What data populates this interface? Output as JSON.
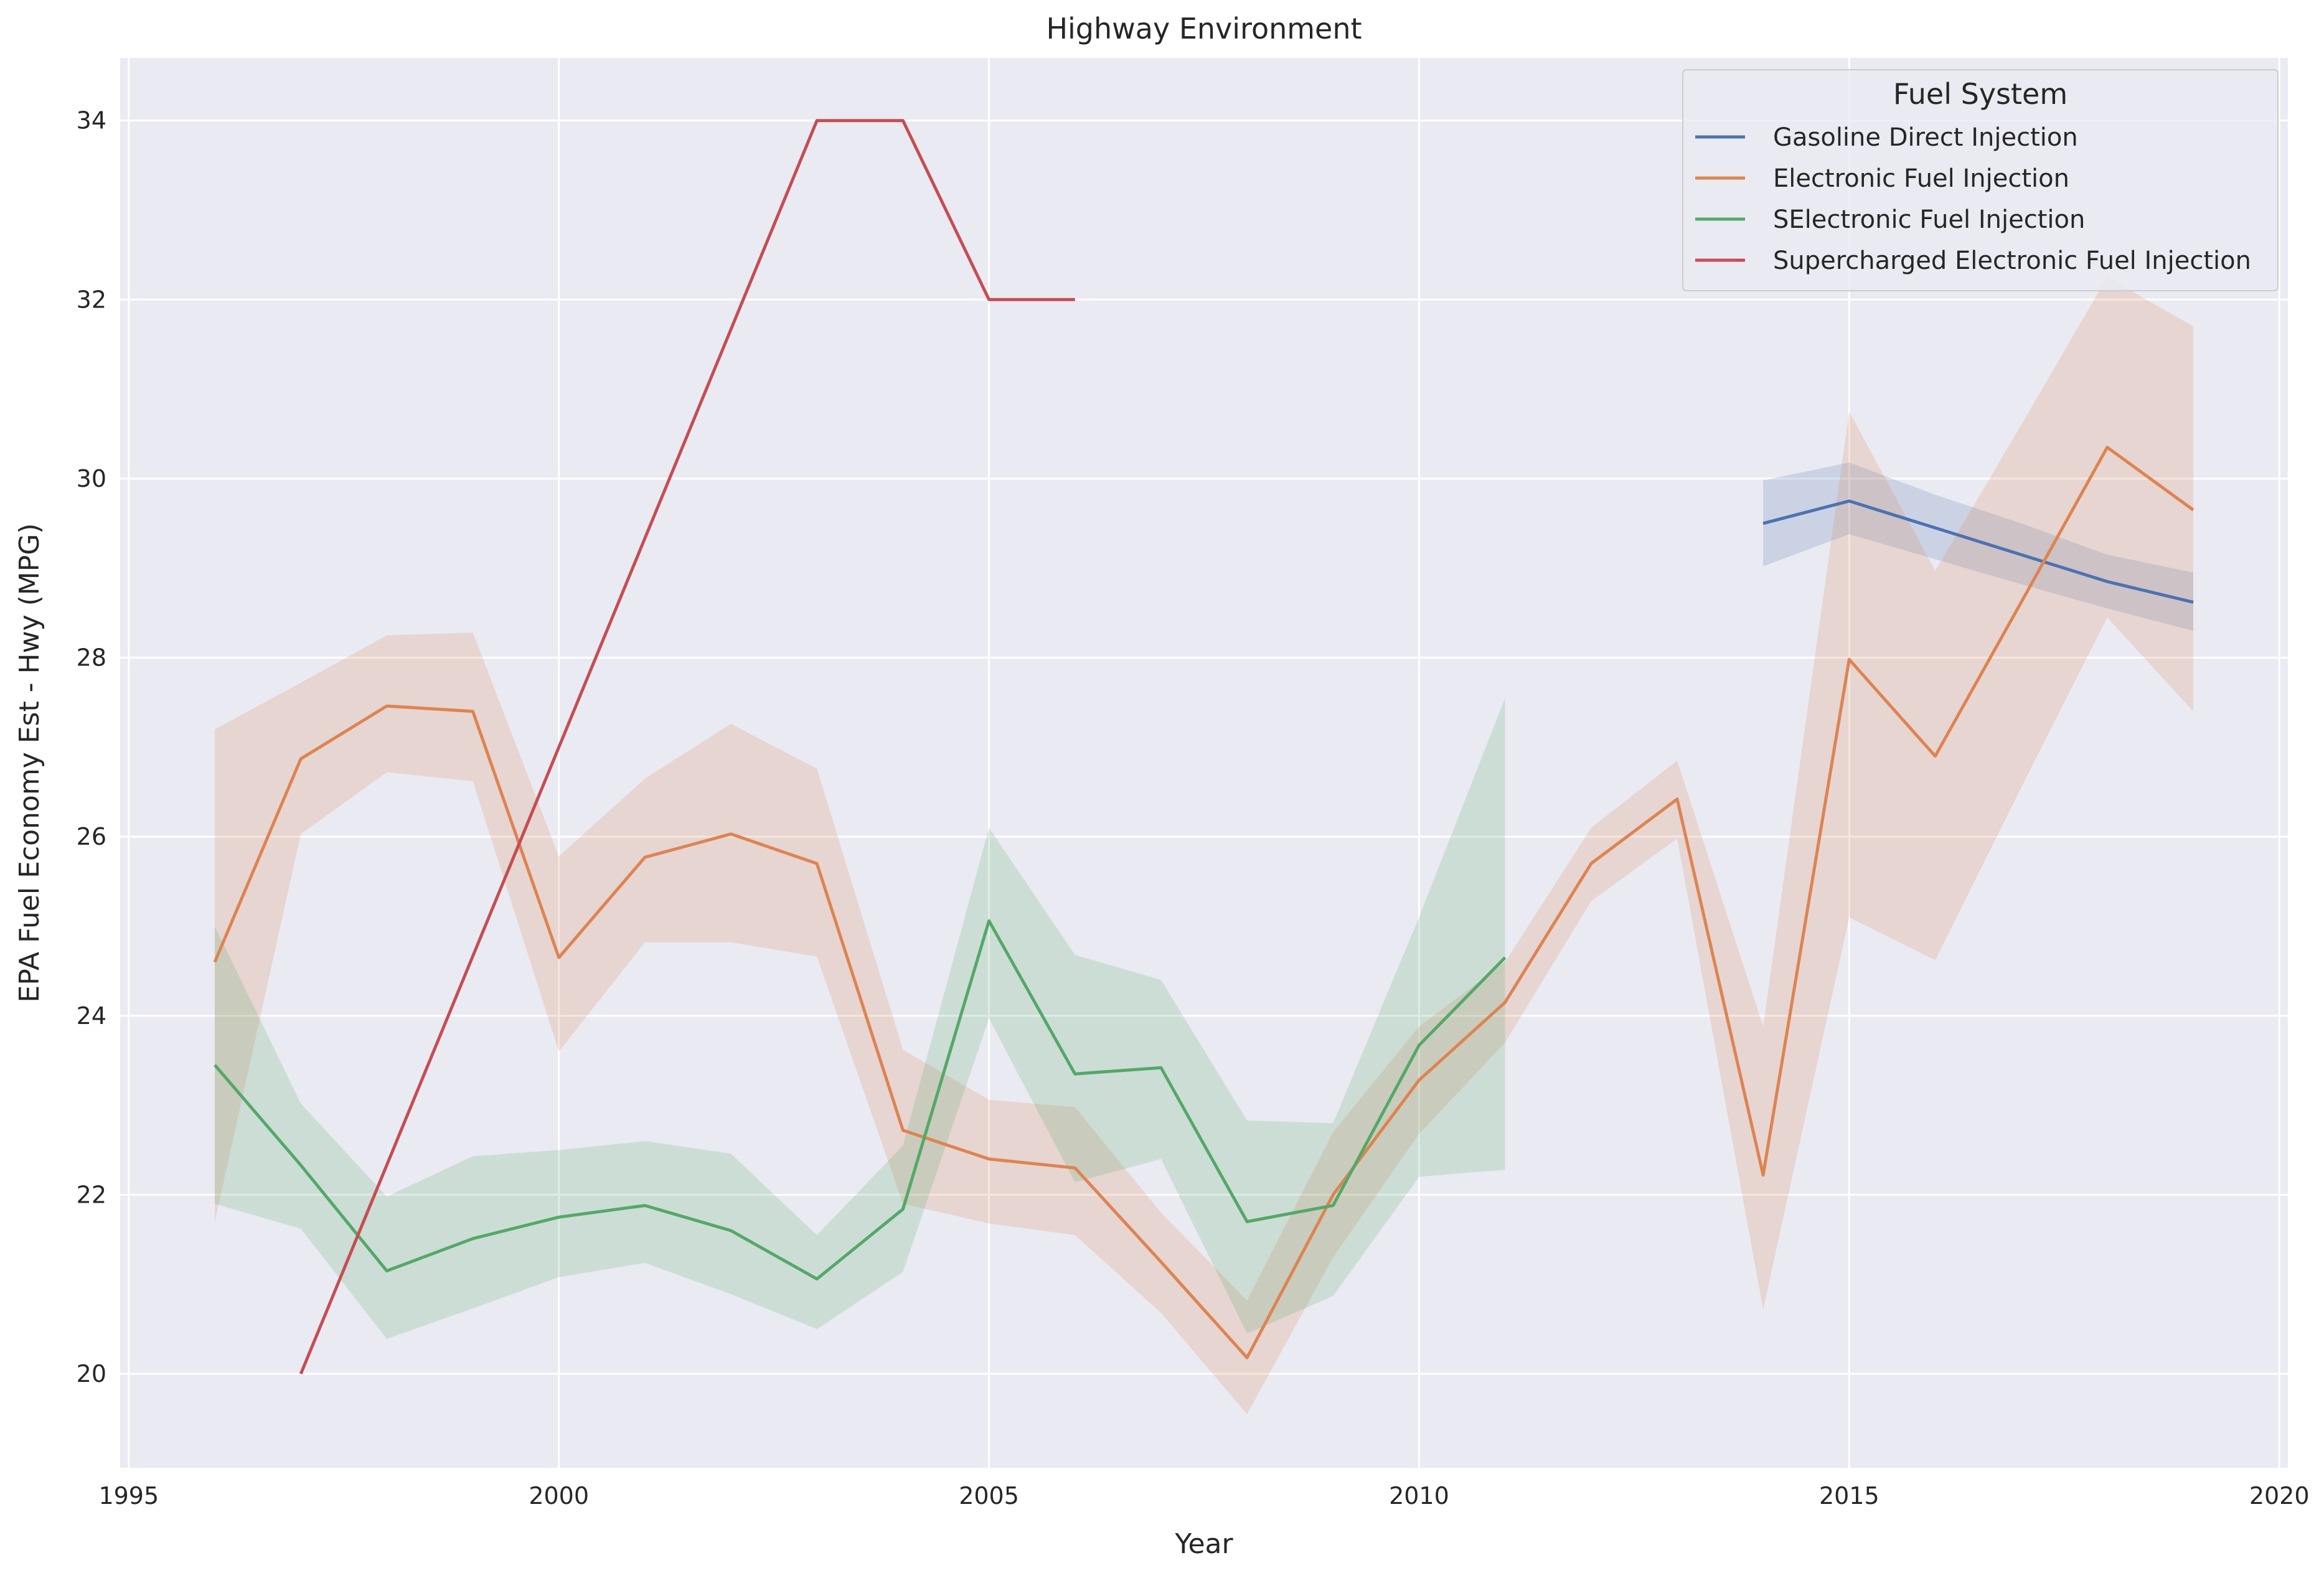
{
  "chart_data": {
    "type": "line",
    "title": "Highway Environment",
    "xlabel": "Year",
    "ylabel": "EPA Fuel Economy Est - Hwy (MPG)",
    "xlim": [
      1994.9,
      2020.1
    ],
    "ylim": [
      18.95,
      34.7
    ],
    "x_ticks": [
      1995,
      2000,
      2005,
      2010,
      2015,
      2020
    ],
    "y_ticks": [
      20,
      22,
      24,
      26,
      28,
      30,
      32,
      34
    ],
    "grid": true,
    "background": "#eaeaf2",
    "legend": {
      "title": "Fuel System",
      "placement": "top-right"
    },
    "series": [
      {
        "name": "Gasoline Direct Injection",
        "color": "#4c72b0",
        "x": [
          2014,
          2015,
          2016,
          2017,
          2018,
          2019
        ],
        "y": [
          29.5,
          29.75,
          29.45,
          29.15,
          28.85,
          28.62
        ],
        "ci_low": [
          29.02,
          29.38,
          29.1,
          28.82,
          28.55,
          28.3
        ],
        "ci_high": [
          29.98,
          30.18,
          29.82,
          29.5,
          29.15,
          28.95
        ]
      },
      {
        "name": "Electronic Fuel Injection",
        "color": "#dd8452",
        "x": [
          1996,
          1997,
          1998,
          1999,
          2000,
          2001,
          2002,
          2003,
          2004,
          2005,
          2006,
          2007,
          2008,
          2009,
          2010,
          2011,
          2012,
          2013,
          2014,
          2015,
          2016,
          2017,
          2018,
          2019
        ],
        "y": [
          24.6,
          26.87,
          27.46,
          27.4,
          24.65,
          25.77,
          26.03,
          25.7,
          22.72,
          22.4,
          22.3,
          21.25,
          20.18,
          22.0,
          23.28,
          24.15,
          25.7,
          26.42,
          22.22,
          27.98,
          26.9,
          28.62,
          30.35,
          29.65
        ],
        "ci_low": [
          21.7,
          26.03,
          26.72,
          26.62,
          23.6,
          24.82,
          24.82,
          24.66,
          21.9,
          21.68,
          21.55,
          20.68,
          19.55,
          21.3,
          22.68,
          23.7,
          25.28,
          25.98,
          20.72,
          25.1,
          24.62,
          26.55,
          28.45,
          27.4
        ],
        "ci_high": [
          27.2,
          27.72,
          28.25,
          28.28,
          25.78,
          26.65,
          27.26,
          26.76,
          23.62,
          23.06,
          22.98,
          21.8,
          20.82,
          22.7,
          23.88,
          24.6,
          26.1,
          26.85,
          23.88,
          30.75,
          28.97,
          30.6,
          32.25,
          31.7
        ]
      },
      {
        "name": "SElectronic Fuel Injection",
        "color": "#55a868",
        "x": [
          1996,
          1997,
          1998,
          1999,
          2000,
          2001,
          2002,
          2003,
          2004,
          2005,
          2006,
          2007,
          2008,
          2009,
          2010,
          2011
        ],
        "y": [
          23.45,
          22.33,
          21.15,
          21.51,
          21.75,
          21.88,
          21.6,
          21.06,
          21.84,
          25.06,
          23.35,
          23.42,
          21.7,
          21.88,
          23.67,
          24.65
        ],
        "ci_low": [
          21.9,
          21.62,
          20.39,
          20.73,
          21.08,
          21.24,
          20.89,
          20.5,
          21.14,
          23.97,
          22.14,
          22.4,
          20.45,
          20.87,
          22.2,
          22.28
        ],
        "ci_high": [
          25.0,
          23.02,
          21.98,
          22.43,
          22.5,
          22.6,
          22.46,
          21.55,
          22.55,
          26.1,
          24.68,
          24.4,
          22.83,
          22.8,
          25.1,
          27.55
        ]
      },
      {
        "name": "Supercharged Electronic Fuel Injection",
        "color": "#c44e52",
        "x": [
          1997,
          2003,
          2004,
          2005,
          2006
        ],
        "y": [
          20.0,
          34.0,
          34.0,
          32.0,
          32.0
        ]
      }
    ]
  }
}
